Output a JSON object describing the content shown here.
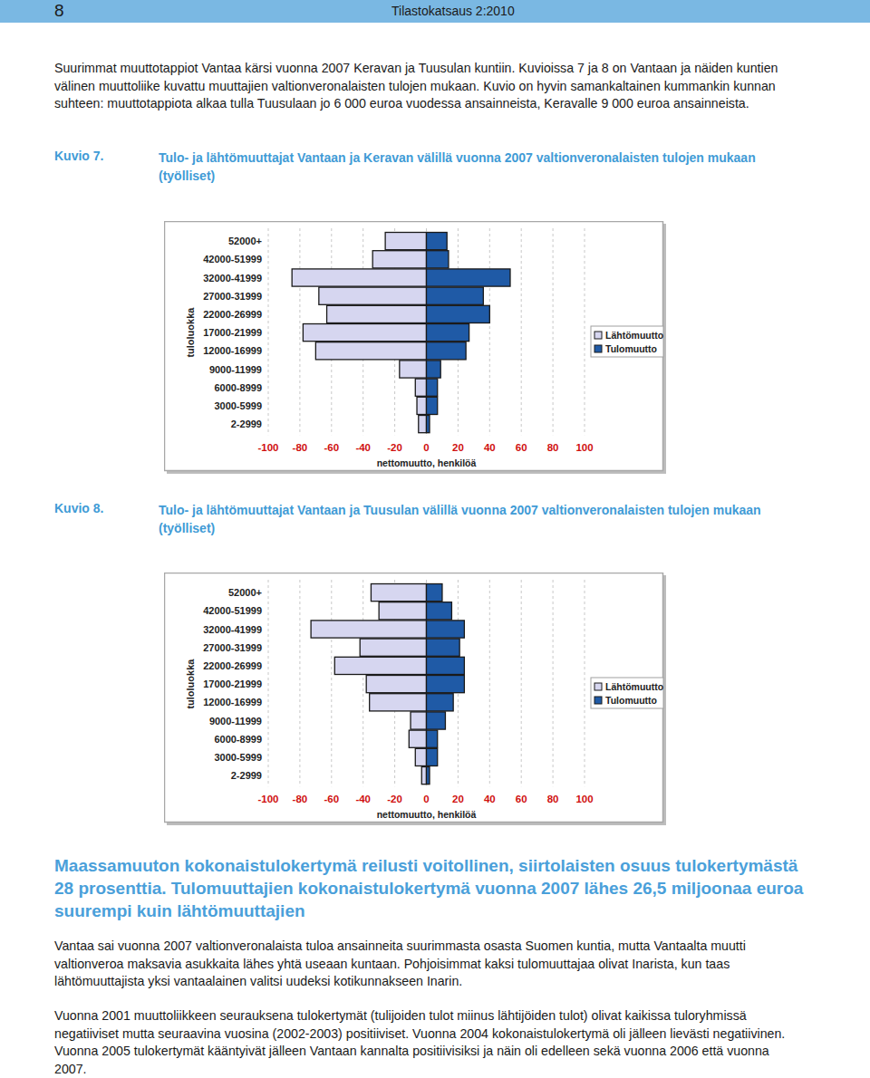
{
  "header": {
    "page_number": "8",
    "publication": "Tilastokatsaus 2:2010"
  },
  "intro": "Suurimmat muuttotappiot Vantaa kärsi vuonna 2007 Keravan ja Tuusulan kuntiin. Kuvioissa 7 ja 8 on Vantaan ja näiden kuntien välinen muuttoliike kuvattu muuttajien valtionveronalaisten tulojen mukaan. Kuvio on hyvin samankaltainen kummankin kunnan suhteen: muuttotappiota alkaa tulla Tuusulaan jo 6 000 euroa vuodessa ansainneista, Keravalle 9 000 euroa ansainneista.",
  "chart_data": [
    {
      "type": "bar",
      "orientation": "horizontal",
      "figure_label": "Kuvio 7.",
      "title": "Tulo- ja lähtömuuttajat Vantaan ja Keravan välillä vuonna 2007 valtionveronalaisten tulojen mukaan (työlliset)",
      "categories": [
        "52000+",
        "42000-51999",
        "32000-41999",
        "27000-31999",
        "22000-26999",
        "17000-21999",
        "12000-16999",
        "9000-11999",
        "6000-8999",
        "3000-5999",
        "2-2999"
      ],
      "series": [
        {
          "name": "Lähtömuutto",
          "color": "#d6d6f0",
          "values": [
            -26,
            -34,
            -85,
            -68,
            -63,
            -78,
            -70,
            -17,
            -7,
            -6,
            -5
          ]
        },
        {
          "name": "Tulomuutto",
          "color": "#1f5aa6",
          "values": [
            13,
            14,
            53,
            36,
            40,
            27,
            25,
            9,
            7,
            7,
            2
          ]
        }
      ],
      "xlim": [
        -100,
        100
      ],
      "xticks": [
        -100,
        -80,
        -60,
        -40,
        -20,
        0,
        20,
        40,
        60,
        80,
        100
      ],
      "xlabel": "nettomuutto, henkilöä",
      "ylabel": "tuloluokka",
      "grid": true,
      "legend": "right"
    },
    {
      "type": "bar",
      "orientation": "horizontal",
      "figure_label": "Kuvio 8.",
      "title": "Tulo- ja lähtömuuttajat Vantaan ja Tuusulan välillä vuonna 2007 valtionveronalaisten tulojen mukaan (työlliset)",
      "categories": [
        "52000+",
        "42000-51999",
        "32000-41999",
        "27000-31999",
        "22000-26999",
        "17000-21999",
        "12000-16999",
        "9000-11999",
        "6000-8999",
        "3000-5999",
        "2-2999"
      ],
      "series": [
        {
          "name": "Lähtömuutto",
          "color": "#d6d6f0",
          "values": [
            -35,
            -30,
            -73,
            -42,
            -58,
            -38,
            -36,
            -10,
            -11,
            -7,
            -3
          ]
        },
        {
          "name": "Tulomuutto",
          "color": "#1f5aa6",
          "values": [
            10,
            16,
            24,
            21,
            24,
            24,
            17,
            12,
            7,
            7,
            2
          ]
        }
      ],
      "xlim": [
        -100,
        100
      ],
      "xticks": [
        -100,
        -80,
        -60,
        -40,
        -20,
        0,
        20,
        40,
        60,
        80,
        100
      ],
      "xlabel": "nettomuutto, henkilöä",
      "ylabel": "tuloluokka",
      "grid": true,
      "legend": "right"
    }
  ],
  "section": {
    "heading": "Maassamuuton kokonaistulokertymä reilusti voitollinen, siirtolaisten osuus tulokertymästä 28 prosenttia. Tulomuuttajien kokonaistulokertymä vuonna 2007 lähes 26,5 miljoonaa euroa suurempi kuin lähtömuuttajien",
    "paragraphs": [
      "Vantaa sai vuonna 2007 valtionveronalaista tuloa ansainneita suurimmasta osasta Suomen kuntia, mutta Vantaalta muutti valtionveroa maksavia asukkaita lähes yhtä useaan kuntaan. Pohjoisimmat kaksi tulomuuttajaa olivat Inarista, kun taas lähtömuuttajista yksi vantaalainen valitsi uudeksi kotikunnakseen Inarin.",
      "Vuonna 2001 muuttoliikkeen seurauksena tulokertymät (tulijoiden tulot miinus lähtijöiden tulot) olivat kaikissa tuloryhmissä negatiiviset mutta seuraavina vuosina (2002-2003) positiiviset. Vuonna 2004 kokonaistulokertymä oli jälleen lievästi negatiivinen. Vuonna 2005 tulokertymät kääntyivät jälleen Vantaan kannalta positiivisiksi ja näin oli edelleen sekä vuonna 2006 että vuonna 2007."
    ]
  }
}
